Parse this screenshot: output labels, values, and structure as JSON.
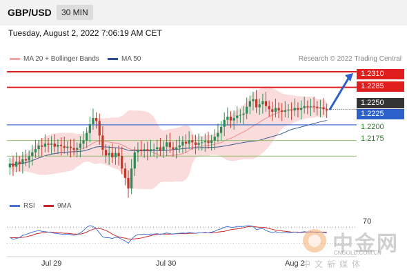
{
  "header": {
    "pair": "GBP/USD",
    "timeframe": "30 MIN"
  },
  "date_text": "Tuesday, August 2, 2022 7:06:19 AM CET",
  "legend": {
    "ma20": "MA 20 + Bollinger Bands",
    "ma50": "MA 50",
    "rsi": "RSI",
    "ma9": "9MA"
  },
  "credit": "Research © 2022 Trading Central",
  "levels": {
    "r2": "1.2310",
    "r1": "1.2285",
    "last": "1.2250",
    "pivot": "1.2225",
    "s1": "1.2200",
    "s2": "1.2175"
  },
  "xticks": [
    "Jul 29",
    "Jul 30",
    "Aug 2"
  ],
  "rsi_level": "70",
  "watermark": {
    "cn": "中金网",
    "url": "CNGOLD.COM.CN",
    "sub": "中文新媒体"
  },
  "colors": {
    "resistance": "#e01e1e",
    "pivot": "#2b61c8",
    "support": "#8fbf6a",
    "bull": "#2e8b57",
    "bear": "#c0392b",
    "band": "#f9d0d0",
    "ma20": "#e88f8f",
    "ma50": "#3a5a8c",
    "arrow": "#2b61c8",
    "rsi": "#4a74d4",
    "ma9": "#c62828"
  },
  "chart_data": {
    "type": "candlestick",
    "ylim": [
      1.211,
      1.232
    ],
    "yticks": [
      1.231,
      1.2285,
      1.225,
      1.2225,
      1.22,
      1.2175
    ],
    "resistance": [
      1.231,
      1.2285
    ],
    "pivot": 1.2225,
    "support": [
      1.22,
      1.2175
    ],
    "last_price": 1.225,
    "xticks": [
      "Jul 29",
      "Jul 30",
      "Aug 2"
    ],
    "close": [
      1.2163,
      1.2158,
      1.2166,
      1.2162,
      1.217,
      1.2168,
      1.2175,
      1.2181,
      1.2186,
      1.2192,
      1.219,
      1.2195,
      1.2193,
      1.2195,
      1.219,
      1.2193,
      1.2191,
      1.2188,
      1.219,
      1.2188,
      1.2185,
      1.2188,
      1.2195,
      1.22,
      1.2212,
      1.2226,
      1.2236,
      1.2231,
      1.2208,
      1.2185,
      1.2176,
      1.218,
      1.2173,
      1.218,
      1.2175,
      1.2155,
      1.214,
      1.2123,
      1.2155,
      1.2181,
      1.2185,
      1.2184,
      1.2186,
      1.2183,
      1.2186,
      1.2186,
      1.2189,
      1.2184,
      1.219,
      1.2197,
      1.2189,
      1.2186,
      1.2189,
      1.2192,
      1.2198,
      1.2195,
      1.22,
      1.2197,
      1.2193,
      1.2196,
      1.2197,
      1.2199,
      1.2196,
      1.22,
      1.2206,
      1.2212,
      1.2222,
      1.2233,
      1.2238,
      1.2232,
      1.2236,
      1.224,
      1.2241,
      1.2243,
      1.2254,
      1.2263,
      1.2266,
      1.2253,
      1.2258,
      1.2263,
      1.2255,
      1.225,
      1.2246,
      1.2252,
      1.2248,
      1.2246,
      1.2248,
      1.2249,
      1.2248,
      1.2252,
      1.2249,
      1.2252,
      1.2255,
      1.2254,
      1.2255,
      1.2254,
      1.2252,
      1.2253,
      1.225,
      1.2248
    ],
    "rsi_ylim": [
      0,
      100
    ],
    "rsi": [
      45,
      40,
      42,
      44,
      50,
      52,
      55,
      58,
      60,
      62,
      60,
      59,
      58,
      57,
      55,
      54,
      53,
      52,
      53,
      52,
      50,
      52,
      56,
      62,
      70,
      74,
      72,
      66,
      56,
      46,
      44,
      44,
      42,
      45,
      44,
      40,
      36,
      30,
      40,
      48,
      52,
      52,
      53,
      52,
      53,
      53,
      54,
      52,
      54,
      56,
      54,
      53,
      54,
      55,
      56,
      55,
      57,
      56,
      55,
      56,
      56,
      57,
      56,
      58,
      60,
      64,
      66,
      70,
      72,
      70,
      70,
      72,
      72,
      72,
      74,
      74,
      72,
      64,
      66,
      67,
      62,
      59,
      57,
      59,
      57,
      56,
      57,
      57,
      57,
      58,
      57,
      58,
      59,
      58,
      59,
      58,
      57,
      58,
      57,
      56
    ],
    "ma9": [
      44,
      44,
      44,
      44,
      45,
      46,
      48,
      50,
      53,
      55,
      56,
      57,
      58,
      58,
      57,
      57,
      56,
      55,
      55,
      54,
      53,
      53,
      53,
      55,
      58,
      62,
      65,
      67,
      67,
      65,
      62,
      58,
      53,
      49,
      46,
      44,
      43,
      41,
      40,
      41,
      42,
      43,
      45,
      47,
      49,
      51,
      52,
      53,
      53,
      53,
      53,
      53,
      54,
      54,
      54,
      54,
      55,
      55,
      55,
      56,
      56,
      56,
      56,
      56,
      57,
      58,
      59,
      60,
      62,
      64,
      65,
      66,
      67,
      69,
      71,
      72,
      72,
      71,
      70,
      70,
      69,
      67,
      65,
      63,
      62,
      61,
      60,
      59,
      58,
      58,
      58,
      57,
      58,
      58,
      58,
      58,
      58,
      58,
      58,
      58
    ]
  }
}
